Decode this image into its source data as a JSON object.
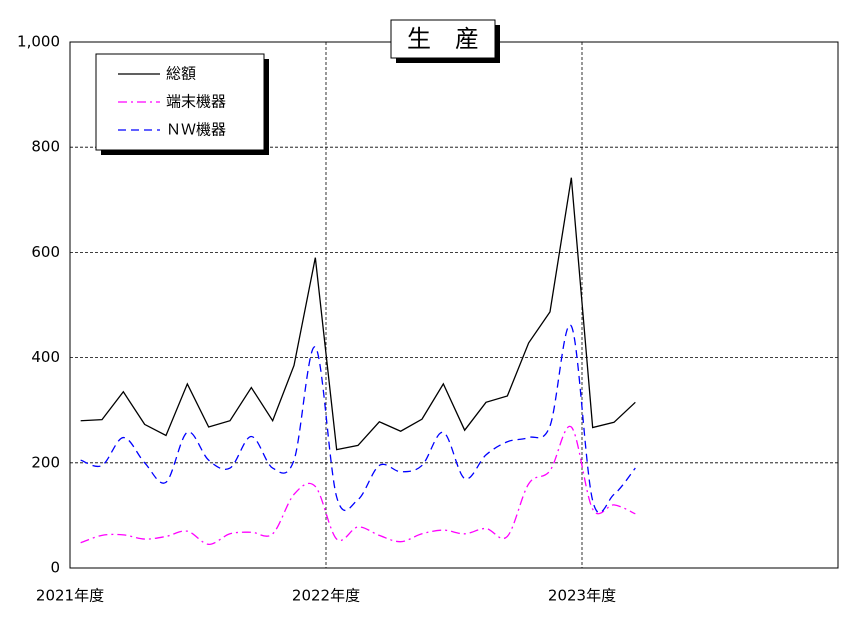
{
  "chart_data": {
    "type": "line",
    "title": "生　産",
    "x": [
      0.5,
      1.5,
      2.5,
      3.5,
      4.5,
      5.5,
      6.5,
      7.5,
      8.5,
      9.5,
      10.5,
      11.5,
      12.5,
      13.5,
      14.5,
      15.5,
      16.5,
      17.5,
      18.5,
      19.5,
      20.5,
      21.5,
      22.5,
      23.5,
      24.5,
      25.5,
      26.5
    ],
    "xlim": [
      0,
      36
    ],
    "xticks": [
      {
        "value": 0,
        "label": "2021年度"
      },
      {
        "value": 12,
        "label": "2022年度"
      },
      {
        "value": 24,
        "label": "2023年度"
      }
    ],
    "ylim": [
      0,
      1000
    ],
    "yticks": [
      0,
      200,
      400,
      600,
      800,
      {
        "value": 1000,
        "label": "1,000"
      }
    ],
    "grid": true,
    "legend": "upper-left",
    "series": [
      {
        "name": "総額",
        "color": "#000000",
        "dash": "solid",
        "values": [
          280,
          282,
          335,
          273,
          252,
          350,
          268,
          280,
          343,
          280,
          385,
          590,
          225,
          233,
          278,
          260,
          283,
          350,
          262,
          315,
          327,
          428,
          487,
          742,
          267,
          277,
          315
        ]
      },
      {
        "name": "端末機器",
        "color": "#ff00ff",
        "dash": "dashdot",
        "values": [
          48,
          62,
          63,
          55,
          60,
          70,
          45,
          65,
          68,
          65,
          140,
          155,
          55,
          78,
          62,
          50,
          65,
          72,
          65,
          75,
          60,
          160,
          185,
          268,
          112,
          120,
          103
        ]
      },
      {
        "name": "ＮＷ機器",
        "color": "#0000ff",
        "dash": "dash",
        "values": [
          205,
          195,
          248,
          200,
          163,
          258,
          205,
          190,
          250,
          190,
          205,
          420,
          135,
          130,
          195,
          183,
          195,
          258,
          170,
          215,
          240,
          248,
          270,
          460,
          128,
          140,
          190
        ]
      }
    ]
  }
}
